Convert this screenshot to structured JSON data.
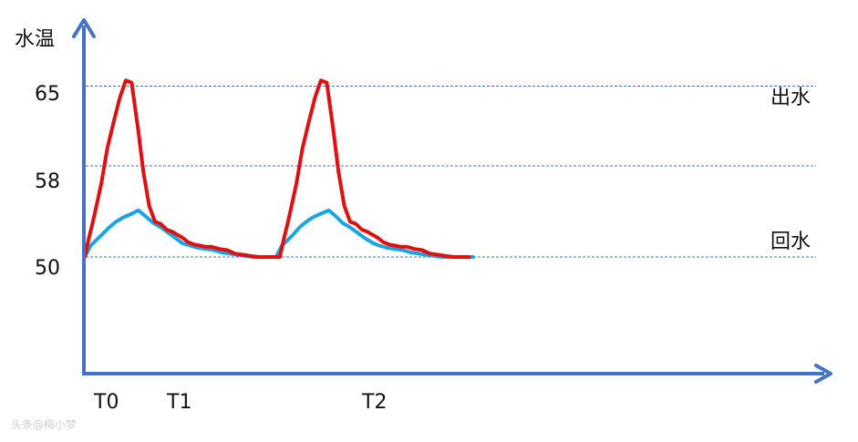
{
  "chart_data": {
    "type": "line",
    "ylabel": "水温",
    "y_ticks": [
      "65",
      "58",
      "50"
    ],
    "x_ticks": [
      "T0",
      "T1",
      "T2"
    ],
    "reference_lines": [
      {
        "label": "出水",
        "value": 65
      },
      {
        "label": "",
        "value": 58
      },
      {
        "label": "回水",
        "value": 50
      }
    ],
    "series": [
      {
        "color": "#e01010",
        "x": [
          0,
          0.04,
          0.08,
          0.12,
          0.17,
          0.23,
          0.3,
          0.36,
          0.42,
          0.48,
          0.55,
          0.6,
          0.66,
          0.72,
          0.78,
          0.84,
          0.9,
          0.96,
          1.0,
          1.06,
          1.12,
          1.18,
          1.24,
          1.3,
          1.38,
          1.46,
          1.54,
          1.62,
          1.7,
          1.78,
          1.86,
          1.94,
          2.0,
          2.04,
          2.08,
          2.12,
          2.17,
          2.23,
          2.3,
          2.36,
          2.42,
          2.48,
          2.55,
          2.6,
          2.66,
          2.72,
          2.78,
          2.84,
          2.9,
          2.96,
          3.0,
          3.06,
          3.12,
          3.18,
          3.24,
          3.3,
          3.38,
          3.46,
          3.54,
          3.62,
          3.7,
          3.78,
          3.86,
          3.94
        ],
        "y": [
          50,
          51.6,
          53,
          54.5,
          56.5,
          59.5,
          62,
          64,
          65.5,
          65.3,
          61,
          57.5,
          54.5,
          53.1,
          52.9,
          52.4,
          52.2,
          51.9,
          51.7,
          51.3,
          51.1,
          51.0,
          50.9,
          50.9,
          50.7,
          50.6,
          50.3,
          50.2,
          50.1,
          50.0,
          50.0,
          50.0,
          50.0,
          51.6,
          53,
          54.5,
          56.5,
          59.5,
          62,
          64,
          65.5,
          65.3,
          61,
          57.5,
          54.5,
          53.1,
          52.9,
          52.4,
          52.2,
          51.9,
          51.7,
          51.3,
          51.1,
          51.0,
          50.9,
          50.9,
          50.7,
          50.6,
          50.3,
          50.2,
          50.1,
          50.0,
          50.0,
          50.0
        ]
      },
      {
        "color": "#1aa5e0",
        "x": [
          0,
          0.06,
          0.12,
          0.18,
          0.25,
          0.32,
          0.4,
          0.48,
          0.55,
          0.62,
          0.7,
          0.78,
          0.86,
          0.94,
          1.0,
          1.08,
          1.16,
          1.24,
          1.32,
          1.4,
          1.48,
          1.56,
          1.64,
          1.72,
          1.8,
          1.88,
          1.96,
          2.02,
          2.08,
          2.14,
          2.2,
          2.27,
          2.34,
          2.42,
          2.5,
          2.57,
          2.64,
          2.72,
          2.8,
          2.88,
          2.96,
          3.02,
          3.1,
          3.18,
          3.26,
          3.34,
          3.42,
          3.5,
          3.58,
          3.66,
          3.74,
          3.82,
          3.9,
          3.98
        ],
        "y": [
          50,
          51.0,
          51.5,
          52.0,
          52.6,
          53.1,
          53.5,
          53.8,
          54.1,
          53.6,
          53.0,
          52.6,
          52.1,
          51.6,
          51.2,
          51.0,
          50.8,
          50.7,
          50.6,
          50.4,
          50.3,
          50.2,
          50.1,
          50.0,
          50.0,
          50.0,
          50.0,
          51.0,
          51.5,
          52.0,
          52.6,
          53.1,
          53.5,
          53.8,
          54.1,
          53.6,
          53.0,
          52.6,
          52.1,
          51.6,
          51.2,
          51.0,
          50.8,
          50.7,
          50.6,
          50.4,
          50.3,
          50.2,
          50.1,
          50.0,
          50.0,
          50.0,
          50.0,
          50.0
        ]
      }
    ]
  },
  "watermark": "头条@梅小梦"
}
